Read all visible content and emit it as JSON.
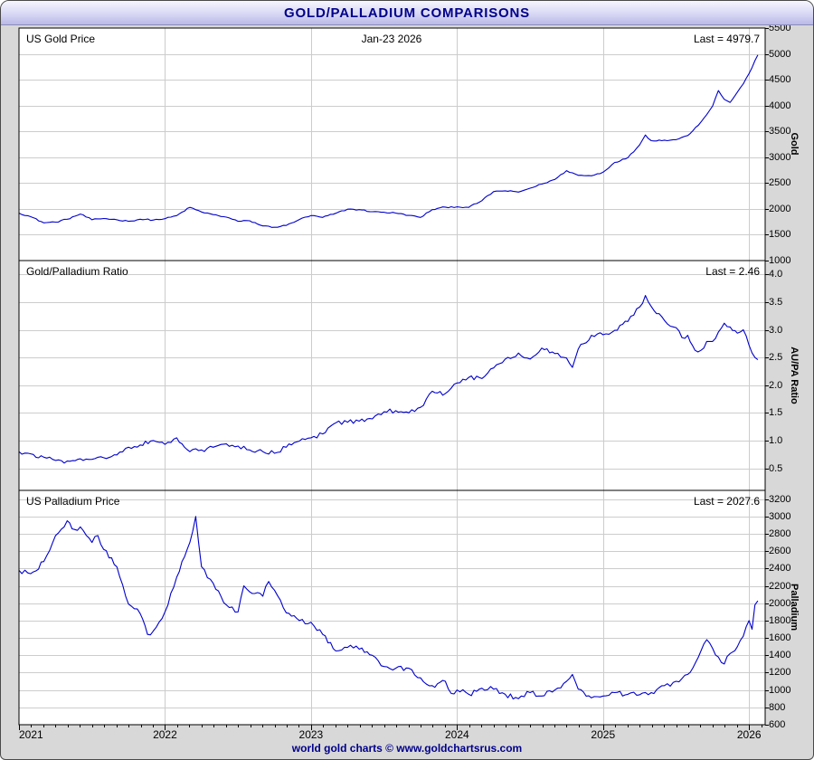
{
  "window": {
    "title": "GOLD/PALLADIUM COMPARISONS"
  },
  "footer": {
    "text": "world gold charts © www.goldchartsrus.com"
  },
  "colors": {
    "line": "#0000cc",
    "grid": "#cccccc",
    "panel_bg": "#ffffff",
    "frame_bg": "#d8d8d8",
    "axis": "#000000",
    "navy_text": "#00008b"
  },
  "x_axis": {
    "ticks": [
      2021,
      2022,
      2023,
      2024,
      2025,
      2026
    ],
    "labels": [
      "2021",
      "2022",
      "2023",
      "2024",
      "2025",
      "2026"
    ],
    "xlim": [
      2021,
      2026.11
    ]
  },
  "chart_data": [
    {
      "type": "line",
      "title": "US Gold Price",
      "date_label": "Jan-23 2026",
      "last_label": "Last = 4979.7",
      "last": 4979.7,
      "ylabel": "Gold",
      "ylim": [
        1000,
        5500
      ],
      "yticks": [
        1000,
        1500,
        2000,
        2500,
        3000,
        3500,
        4000,
        4500,
        5000,
        5500
      ],
      "tick_decimals": 0,
      "noise": 13,
      "x": [
        2021.0,
        2021.08,
        2021.17,
        2021.25,
        2021.33,
        2021.42,
        2021.5,
        2021.58,
        2021.67,
        2021.75,
        2021.83,
        2021.92,
        2022.0,
        2022.08,
        2022.17,
        2022.25,
        2022.33,
        2022.42,
        2022.5,
        2022.58,
        2022.67,
        2022.75,
        2022.83,
        2022.92,
        2023.0,
        2023.08,
        2023.17,
        2023.25,
        2023.33,
        2023.42,
        2023.5,
        2023.58,
        2023.67,
        2023.75,
        2023.83,
        2023.92,
        2024.0,
        2024.08,
        2024.17,
        2024.25,
        2024.33,
        2024.42,
        2024.5,
        2024.58,
        2024.67,
        2024.75,
        2024.83,
        2024.92,
        2025.0,
        2025.08,
        2025.17,
        2025.25,
        2025.29,
        2025.33,
        2025.42,
        2025.5,
        2025.58,
        2025.67,
        2025.75,
        2025.79,
        2025.83,
        2025.87,
        2025.92,
        2025.96,
        2026.0,
        2026.04,
        2026.06
      ],
      "values": [
        1920,
        1850,
        1730,
        1745,
        1800,
        1900,
        1790,
        1815,
        1790,
        1760,
        1800,
        1785,
        1810,
        1870,
        2030,
        1940,
        1890,
        1840,
        1760,
        1770,
        1670,
        1645,
        1680,
        1795,
        1870,
        1835,
        1915,
        1995,
        1985,
        1945,
        1935,
        1920,
        1875,
        1835,
        1985,
        2035,
        2040,
        2030,
        2160,
        2335,
        2350,
        2325,
        2400,
        2480,
        2570,
        2740,
        2650,
        2640,
        2710,
        2900,
        2990,
        3240,
        3430,
        3320,
        3330,
        3340,
        3420,
        3680,
        3990,
        4290,
        4120,
        4060,
        4260,
        4420,
        4620,
        4870,
        4979.7
      ]
    },
    {
      "type": "line",
      "title": "Gold/Palladium Ratio",
      "last_label": "Last = 2.46",
      "last": 2.46,
      "ylabel": "AU/PA Ratio",
      "ylim": [
        0.1,
        4.25
      ],
      "yticks": [
        0.5,
        1.0,
        1.5,
        2.0,
        2.5,
        3.0,
        3.5,
        4.0
      ],
      "tick_decimals": 1,
      "noise": 0.04,
      "x": [
        2021.0,
        2021.08,
        2021.17,
        2021.25,
        2021.33,
        2021.42,
        2021.5,
        2021.58,
        2021.67,
        2021.75,
        2021.83,
        2021.92,
        2022.0,
        2022.08,
        2022.17,
        2022.25,
        2022.33,
        2022.42,
        2022.5,
        2022.58,
        2022.67,
        2022.75,
        2022.83,
        2022.92,
        2023.0,
        2023.08,
        2023.17,
        2023.25,
        2023.33,
        2023.42,
        2023.5,
        2023.58,
        2023.67,
        2023.75,
        2023.83,
        2023.92,
        2024.0,
        2024.08,
        2024.17,
        2024.25,
        2024.33,
        2024.42,
        2024.5,
        2024.58,
        2024.67,
        2024.75,
        2024.79,
        2024.83,
        2024.92,
        2025.0,
        2025.08,
        2025.17,
        2025.25,
        2025.29,
        2025.33,
        2025.42,
        2025.5,
        2025.54,
        2025.58,
        2025.63,
        2025.67,
        2025.71,
        2025.75,
        2025.83,
        2025.87,
        2025.92,
        2025.96,
        2026.0,
        2026.04,
        2026.06
      ],
      "values": [
        0.8,
        0.76,
        0.7,
        0.64,
        0.63,
        0.67,
        0.66,
        0.69,
        0.74,
        0.88,
        0.92,
        1.0,
        0.93,
        1.05,
        0.8,
        0.83,
        0.88,
        0.94,
        0.9,
        0.83,
        0.8,
        0.77,
        0.88,
        0.99,
        1.05,
        1.12,
        1.32,
        1.33,
        1.35,
        1.39,
        1.52,
        1.54,
        1.5,
        1.6,
        1.89,
        1.85,
        2.04,
        2.14,
        2.12,
        2.31,
        2.47,
        2.58,
        2.47,
        2.67,
        2.57,
        2.49,
        2.32,
        2.65,
        2.9,
        2.91,
        2.99,
        3.15,
        3.41,
        3.62,
        3.42,
        3.17,
        3.04,
        2.86,
        2.9,
        2.63,
        2.63,
        2.79,
        2.79,
        3.12,
        3.05,
        2.94,
        3.0,
        2.72,
        2.5,
        2.46
      ]
    },
    {
      "type": "line",
      "title": "US Palladium Price",
      "last_label": "Last = 2027.6",
      "last": 2027.6,
      "ylabel": "Palladium",
      "ylim": [
        600,
        3300
      ],
      "yticks": [
        600,
        800,
        1000,
        1200,
        1400,
        1600,
        1800,
        2000,
        2200,
        2400,
        2600,
        2800,
        3000,
        3200
      ],
      "tick_decimals": 0,
      "noise": 32,
      "x": [
        2021.0,
        2021.08,
        2021.17,
        2021.25,
        2021.33,
        2021.38,
        2021.42,
        2021.5,
        2021.54,
        2021.58,
        2021.67,
        2021.75,
        2021.83,
        2021.88,
        2021.92,
        2022.0,
        2022.08,
        2022.17,
        2022.21,
        2022.25,
        2022.33,
        2022.42,
        2022.5,
        2022.54,
        2022.58,
        2022.67,
        2022.71,
        2022.75,
        2022.83,
        2022.92,
        2023.0,
        2023.08,
        2023.17,
        2023.25,
        2023.33,
        2023.42,
        2023.5,
        2023.58,
        2023.67,
        2023.75,
        2023.83,
        2023.92,
        2023.96,
        2024.0,
        2024.08,
        2024.17,
        2024.25,
        2024.33,
        2024.42,
        2024.5,
        2024.58,
        2024.67,
        2024.75,
        2024.79,
        2024.83,
        2024.92,
        2025.0,
        2025.08,
        2025.17,
        2025.25,
        2025.33,
        2025.42,
        2025.5,
        2025.58,
        2025.67,
        2025.71,
        2025.75,
        2025.79,
        2025.83,
        2025.87,
        2025.92,
        2025.96,
        2026.0,
        2026.02,
        2026.04,
        2026.06
      ],
      "values": [
        2380,
        2340,
        2480,
        2780,
        2950,
        2850,
        2880,
        2700,
        2780,
        2620,
        2420,
        1990,
        1880,
        1640,
        1680,
        1900,
        2300,
        2700,
        3000,
        2420,
        2230,
        1980,
        1900,
        2200,
        2130,
        2080,
        2250,
        2150,
        1890,
        1800,
        1780,
        1640,
        1450,
        1490,
        1470,
        1400,
        1270,
        1250,
        1250,
        1140,
        1050,
        1100,
        960,
        1000,
        950,
        1020,
        1010,
        950,
        900,
        970,
        930,
        1000,
        1100,
        1180,
        1010,
        910,
        930,
        970,
        950,
        945,
        970,
        1050,
        1100,
        1180,
        1450,
        1580,
        1480,
        1380,
        1300,
        1420,
        1500,
        1620,
        1800,
        1700,
        1980,
        2027.6
      ]
    }
  ]
}
